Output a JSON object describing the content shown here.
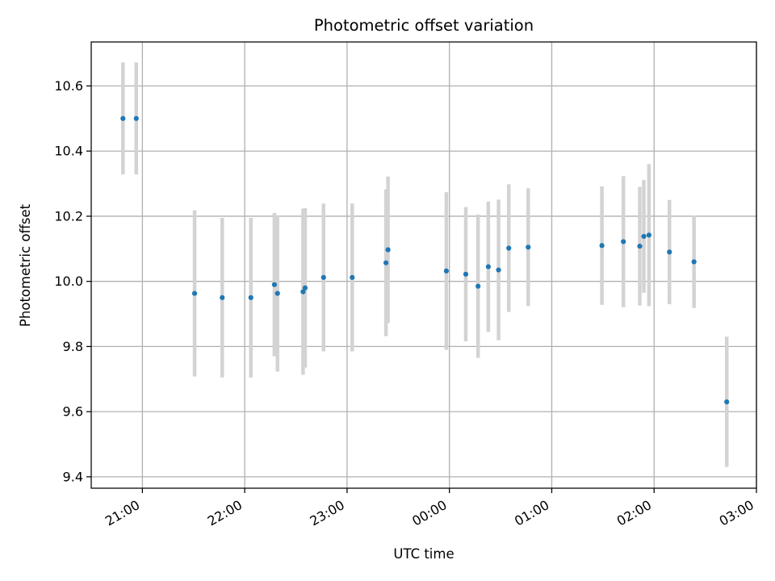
{
  "chart_data": {
    "type": "scatter",
    "title": "Photometric offset variation",
    "xlabel": "UTC time",
    "ylabel": "Photometric offset",
    "x_unit": "UTC time, hours (values past 24 are after midnight)",
    "xlim": [
      20.5,
      27.0
    ],
    "ylim": [
      9.365,
      10.735
    ],
    "x_ticks": [
      {
        "value": 21,
        "label": "21:00"
      },
      {
        "value": 22,
        "label": "22:00"
      },
      {
        "value": 23,
        "label": "23:00"
      },
      {
        "value": 24,
        "label": "00:00"
      },
      {
        "value": 25,
        "label": "01:00"
      },
      {
        "value": 26,
        "label": "02:00"
      },
      {
        "value": 27,
        "label": "03:00"
      }
    ],
    "y_ticks": [
      {
        "value": 9.4,
        "label": "9.4"
      },
      {
        "value": 9.6,
        "label": "9.6"
      },
      {
        "value": 9.8,
        "label": "9.8"
      },
      {
        "value": 10.0,
        "label": "10.0"
      },
      {
        "value": 10.2,
        "label": "10.2"
      },
      {
        "value": 10.4,
        "label": "10.4"
      },
      {
        "value": 10.6,
        "label": "10.6"
      }
    ],
    "grid": true,
    "legend": "none",
    "colors": {
      "marker": "#1f77b4",
      "errorbar": "#d3d3d3",
      "grid": "#b0b0b0"
    },
    "series": [
      {
        "points": [
          {
            "x": 20.81,
            "y": 10.5,
            "err": 0.172
          },
          {
            "x": 20.94,
            "y": 10.5,
            "err": 0.172
          },
          {
            "x": 21.51,
            "y": 9.963,
            "err": 0.255
          },
          {
            "x": 21.78,
            "y": 9.95,
            "err": 0.245
          },
          {
            "x": 22.06,
            "y": 9.95,
            "err": 0.245
          },
          {
            "x": 22.29,
            "y": 9.99,
            "err": 0.22
          },
          {
            "x": 22.32,
            "y": 9.963,
            "err": 0.24
          },
          {
            "x": 22.57,
            "y": 9.968,
            "err": 0.255
          },
          {
            "x": 22.59,
            "y": 9.98,
            "err": 0.245
          },
          {
            "x": 22.77,
            "y": 10.012,
            "err": 0.227
          },
          {
            "x": 23.05,
            "y": 10.012,
            "err": 0.227
          },
          {
            "x": 23.38,
            "y": 10.057,
            "err": 0.225
          },
          {
            "x": 23.4,
            "y": 10.097,
            "err": 0.225
          },
          {
            "x": 23.97,
            "y": 10.032,
            "err": 0.242
          },
          {
            "x": 24.16,
            "y": 10.022,
            "err": 0.206
          },
          {
            "x": 24.28,
            "y": 9.985,
            "err": 0.22
          },
          {
            "x": 24.38,
            "y": 10.045,
            "err": 0.2
          },
          {
            "x": 24.48,
            "y": 10.035,
            "err": 0.216
          },
          {
            "x": 24.58,
            "y": 10.102,
            "err": 0.196
          },
          {
            "x": 24.77,
            "y": 10.105,
            "err": 0.181
          },
          {
            "x": 25.49,
            "y": 10.11,
            "err": 0.182
          },
          {
            "x": 25.7,
            "y": 10.122,
            "err": 0.201
          },
          {
            "x": 25.86,
            "y": 10.108,
            "err": 0.182
          },
          {
            "x": 25.9,
            "y": 10.138,
            "err": 0.173
          },
          {
            "x": 25.95,
            "y": 10.142,
            "err": 0.218
          },
          {
            "x": 26.15,
            "y": 10.09,
            "err": 0.16
          },
          {
            "x": 26.39,
            "y": 10.06,
            "err": 0.142
          },
          {
            "x": 26.71,
            "y": 9.63,
            "err": 0.2
          }
        ]
      }
    ]
  }
}
